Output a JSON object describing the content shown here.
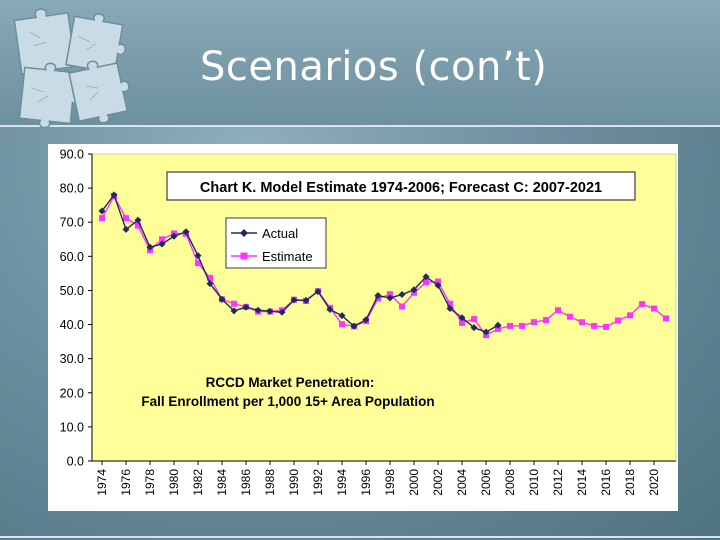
{
  "slide": {
    "title": "Scenarios (con’t)",
    "logo_icon": "puzzle-pieces-icon"
  },
  "colors": {
    "plot_bg": "#ffff99",
    "actual": "#1f2a60",
    "estimate": "#ff33ff",
    "border": "#3d3d3d"
  },
  "chart_data": {
    "type": "line",
    "title": "Chart K.  Model Estimate 1974-2006; Forecast C: 2007-2021",
    "annotation_lines": [
      "RCCD Market Penetration:",
      "Fall Enrollment per 1,000 15+ Area Population"
    ],
    "xlabel": "",
    "ylabel": "",
    "ylim": [
      0,
      90
    ],
    "xlim": [
      1974,
      2021
    ],
    "y_ticks": [
      "0.0",
      "10.0",
      "20.0",
      "30.0",
      "40.0",
      "50.0",
      "60.0",
      "70.0",
      "80.0",
      "90.0"
    ],
    "x_ticks": [
      "1974",
      "1976",
      "1978",
      "1980",
      "1982",
      "1984",
      "1986",
      "1988",
      "1990",
      "1992",
      "1994",
      "1996",
      "1998",
      "2000",
      "2002",
      "2004",
      "2006",
      "2008",
      "2010",
      "2012",
      "2014",
      "2016",
      "2018",
      "2020"
    ],
    "grid": false,
    "legend_position": "upper-left",
    "series": [
      {
        "name": "Actual",
        "marker": "diamond",
        "x": [
          1974,
          1975,
          1976,
          1977,
          1978,
          1979,
          1980,
          1981,
          1982,
          1983,
          1984,
          1985,
          1986,
          1987,
          1988,
          1989,
          1990,
          1991,
          1992,
          1993,
          1994,
          1995,
          1996,
          1997,
          1998,
          1999,
          2000,
          2001,
          2002,
          2003,
          2004,
          2005,
          2006,
          2007
        ],
        "y": [
          73.3,
          78.0,
          67.9,
          70.6,
          62.7,
          63.6,
          65.9,
          67.2,
          60.2,
          52.0,
          47.4,
          44.0,
          45.1,
          44.2,
          43.9,
          43.6,
          47.2,
          47.1,
          49.7,
          44.4,
          42.6,
          39.5,
          41.4,
          48.5,
          47.8,
          48.8,
          50.2,
          54.0,
          51.5,
          44.7,
          42.0,
          39.1,
          37.8,
          39.8
        ]
      },
      {
        "name": "Estimate",
        "marker": "square",
        "x": [
          1974,
          1975,
          1976,
          1977,
          1978,
          1979,
          1980,
          1981,
          1982,
          1983,
          1984,
          1985,
          1986,
          1987,
          1988,
          1989,
          1990,
          1991,
          1992,
          1993,
          1994,
          1995,
          1996,
          1997,
          1998,
          1999,
          2000,
          2001,
          2002,
          2003,
          2004,
          2005,
          2006,
          2007,
          2008,
          2009,
          2010,
          2011,
          2012,
          2013,
          2014,
          2015,
          2016,
          2017,
          2018,
          2019,
          2020,
          2021
        ],
        "y": [
          71.2,
          77.6,
          71.2,
          69.0,
          61.8,
          65.0,
          66.7,
          66.6,
          58.0,
          53.7,
          47.4,
          46.1,
          45.2,
          43.8,
          43.8,
          44.2,
          47.3,
          46.9,
          49.8,
          44.9,
          40.1,
          39.5,
          41.0,
          47.6,
          48.9,
          45.3,
          49.3,
          52.4,
          52.6,
          46.1,
          40.5,
          41.6,
          36.9,
          38.7,
          39.6,
          39.6,
          40.7,
          41.3,
          44.2,
          42.3,
          40.7,
          39.6,
          39.3,
          41.2,
          42.7,
          46.0,
          44.7,
          41.8
        ]
      }
    ]
  }
}
